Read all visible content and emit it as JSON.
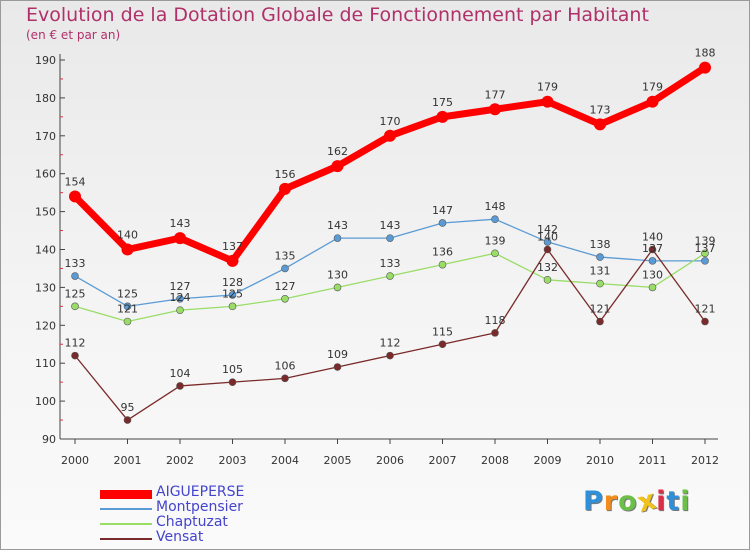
{
  "header": {
    "title": "Evolution de la Dotation Globale de Fonctionnement par Habitant",
    "subtitle": "(en € et par an)"
  },
  "chart_data": {
    "type": "line",
    "title": "Evolution de la Dotation Globale de Fonctionnement par Habitant",
    "subtitle": "(en € et par an)",
    "xlabel": "",
    "ylabel": "",
    "x": [
      "2000",
      "2001",
      "2002",
      "2003",
      "2004",
      "2005",
      "2006",
      "2007",
      "2008",
      "2009",
      "2010",
      "2011",
      "2012"
    ],
    "ylim": [
      90,
      190
    ],
    "yticks": [
      90,
      100,
      110,
      120,
      130,
      140,
      150,
      160,
      170,
      180,
      190
    ],
    "grid": false,
    "legend_position": "bottom-left",
    "series": [
      {
        "name": "AIGUEPERSE",
        "color": "#ff0000",
        "values": [
          154,
          140,
          143,
          137,
          156,
          162,
          170,
          175,
          177,
          179,
          173,
          179,
          188
        ]
      },
      {
        "name": "Montpensier",
        "color": "#5b9bd5",
        "values": [
          133,
          125,
          127,
          128,
          135,
          143,
          143,
          147,
          148,
          142,
          138,
          137,
          137
        ]
      },
      {
        "name": "Chaptuzat",
        "color": "#99dd66",
        "values": [
          125,
          121,
          124,
          125,
          127,
          130,
          133,
          136,
          139,
          132,
          131,
          130,
          139
        ]
      },
      {
        "name": "Vensat",
        "color": "#7a2a2a",
        "values": [
          112,
          95,
          104,
          105,
          106,
          109,
          112,
          115,
          118,
          140,
          121,
          140,
          121
        ]
      }
    ]
  },
  "logo": {
    "letters": [
      "P",
      "r",
      "o",
      "x",
      "i",
      "t",
      "i"
    ],
    "colors": [
      "#2f8fd8",
      "#f28c1c",
      "#6cc04a",
      "#f2c21c",
      "#d9304a",
      "#2f8fd8",
      "#6cc04a"
    ]
  }
}
